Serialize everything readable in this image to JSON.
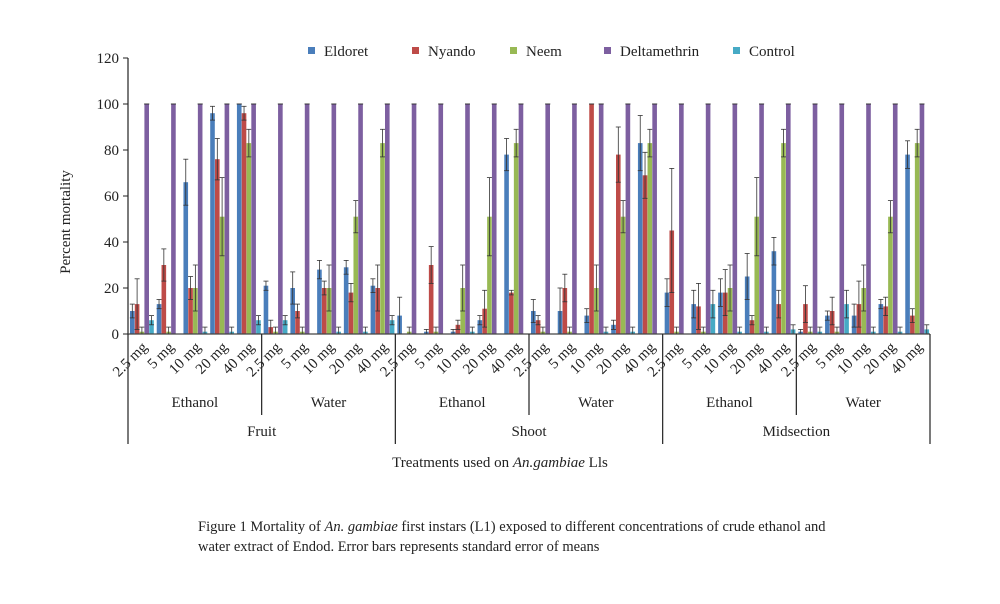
{
  "chart_data": {
    "type": "bar",
    "title": "",
    "ylabel": "Percent mortality",
    "xlabel_prefix": "Treatments used on ",
    "xlabel_italic": "An.gambiae",
    "xlabel_suffix": " Lls",
    "ylim": [
      0,
      120
    ],
    "yticks": [
      0,
      20,
      40,
      60,
      80,
      100,
      120
    ],
    "grid": false,
    "legend_position": "top",
    "series_colors": {
      "Eldoret": "#4a7ebb",
      "Nyando": "#be4b48",
      "Neem": "#98b954",
      "Deltamethrin": "#7d5fa0",
      "Control": "#46aac5"
    },
    "concentrations": [
      "2.5 mg",
      "5 mg",
      "10 mg",
      "20 mg",
      "40 mg"
    ],
    "solvents": [
      "Ethanol",
      "Water",
      "Ethanol",
      "Water",
      "Ethanol",
      "Water"
    ],
    "plant_parts": [
      "Fruit",
      "Shoot",
      "Midsection"
    ],
    "categories": [
      "Fruit Ethanol 2.5 mg",
      "Fruit Ethanol 5 mg",
      "Fruit Ethanol 10 mg",
      "Fruit Ethanol 20 mg",
      "Fruit Ethanol 40 mg",
      "Fruit Water 2.5 mg",
      "Fruit Water 5 mg",
      "Fruit Water 10 mg",
      "Fruit Water 20 mg",
      "Fruit Water 40 mg",
      "Shoot Ethanol 2.5 mg",
      "Shoot Ethanol 5 mg",
      "Shoot Ethanol 10 mg",
      "Shoot Ethanol 20 mg",
      "Shoot Ethanol 40 mg",
      "Shoot Water 2.5 mg",
      "Shoot Water 5 mg",
      "Shoot Water 10 mg",
      "Shoot Water 20 mg",
      "Shoot Water 40 mg",
      "Midsection Ethanol 2.5 mg",
      "Midsection Ethanol 5 mg",
      "Midsection Ethanol 10 mg",
      "Midsection Ethanol 20 mg",
      "Midsection Ethanol 40 mg",
      "Midsection Water 2.5 mg",
      "Midsection Water 5 mg",
      "Midsection Water 10 mg",
      "Midsection Water 20 mg",
      "Midsection Water 40 mg"
    ],
    "series": [
      {
        "name": "Eldoret",
        "values": [
          10,
          13,
          66,
          96,
          100,
          21,
          20,
          28,
          29,
          21,
          8,
          1,
          1,
          6,
          78,
          10,
          10,
          8,
          4,
          83,
          18,
          13,
          18,
          25,
          36,
          1,
          8,
          8,
          13,
          78
        ],
        "errors": [
          3,
          2,
          10,
          3,
          0,
          2,
          7,
          4,
          3,
          3,
          8,
          1,
          1,
          2,
          7,
          5,
          10,
          3,
          2,
          12,
          6,
          6,
          6,
          10,
          6,
          1,
          2,
          5,
          2,
          6
        ]
      },
      {
        "name": "Nyando",
        "values": [
          13,
          30,
          20,
          76,
          96,
          3,
          10,
          20,
          18,
          20,
          0,
          30,
          4,
          11,
          18,
          6,
          20,
          100,
          78,
          69,
          45,
          12,
          18,
          6,
          13,
          13,
          10,
          13,
          12,
          8
        ],
        "errors": [
          11,
          7,
          5,
          9,
          3,
          3,
          3,
          3,
          4,
          10,
          0,
          8,
          2,
          8,
          1,
          2,
          6,
          0,
          12,
          10,
          27,
          10,
          10,
          2,
          6,
          8,
          6,
          10,
          4,
          3
        ]
      },
      {
        "name": "Neem",
        "values": [
          1,
          1,
          20,
          51,
          83,
          1,
          1,
          20,
          51,
          83,
          1,
          1,
          20,
          51,
          83,
          1,
          1,
          20,
          51,
          83,
          1,
          1,
          20,
          51,
          83,
          1,
          1,
          20,
          51,
          83
        ],
        "errors": [
          2,
          2,
          10,
          17,
          6,
          2,
          2,
          10,
          7,
          6,
          2,
          2,
          10,
          17,
          6,
          2,
          2,
          10,
          7,
          6,
          2,
          2,
          10,
          17,
          6,
          2,
          2,
          10,
          7,
          6
        ]
      },
      {
        "name": "Deltamethrin",
        "values": [
          100,
          100,
          100,
          100,
          100,
          100,
          100,
          100,
          100,
          100,
          100,
          100,
          100,
          100,
          100,
          100,
          100,
          100,
          100,
          100,
          100,
          100,
          100,
          100,
          100,
          100,
          100,
          100,
          100,
          100
        ],
        "errors": [
          0,
          0,
          0,
          0,
          0,
          0,
          0,
          0,
          0,
          0,
          0,
          0,
          0,
          0,
          0,
          0,
          0,
          0,
          0,
          0,
          0,
          0,
          0,
          0,
          0,
          0,
          0,
          0,
          0,
          0
        ]
      },
      {
        "name": "Control",
        "values": [
          6,
          0,
          1,
          1,
          6,
          6,
          0,
          1,
          1,
          6,
          0,
          0,
          1,
          0,
          0,
          0,
          0,
          1,
          1,
          0,
          0,
          13,
          1,
          1,
          2,
          1,
          13,
          1,
          1,
          2
        ],
        "errors": [
          2,
          0,
          2,
          2,
          2,
          2,
          0,
          2,
          2,
          2,
          0,
          0,
          2,
          0,
          0,
          0,
          0,
          2,
          2,
          0,
          0,
          6,
          2,
          2,
          2,
          2,
          6,
          2,
          2,
          2
        ]
      }
    ]
  },
  "caption": {
    "part1": "Figure 1 Mortality of ",
    "italic": "An. gambiae",
    "part2": " first instars (L1) exposed to different concentrations of crude ethanol and water extract of Endod. Error bars represents standard error of means"
  }
}
